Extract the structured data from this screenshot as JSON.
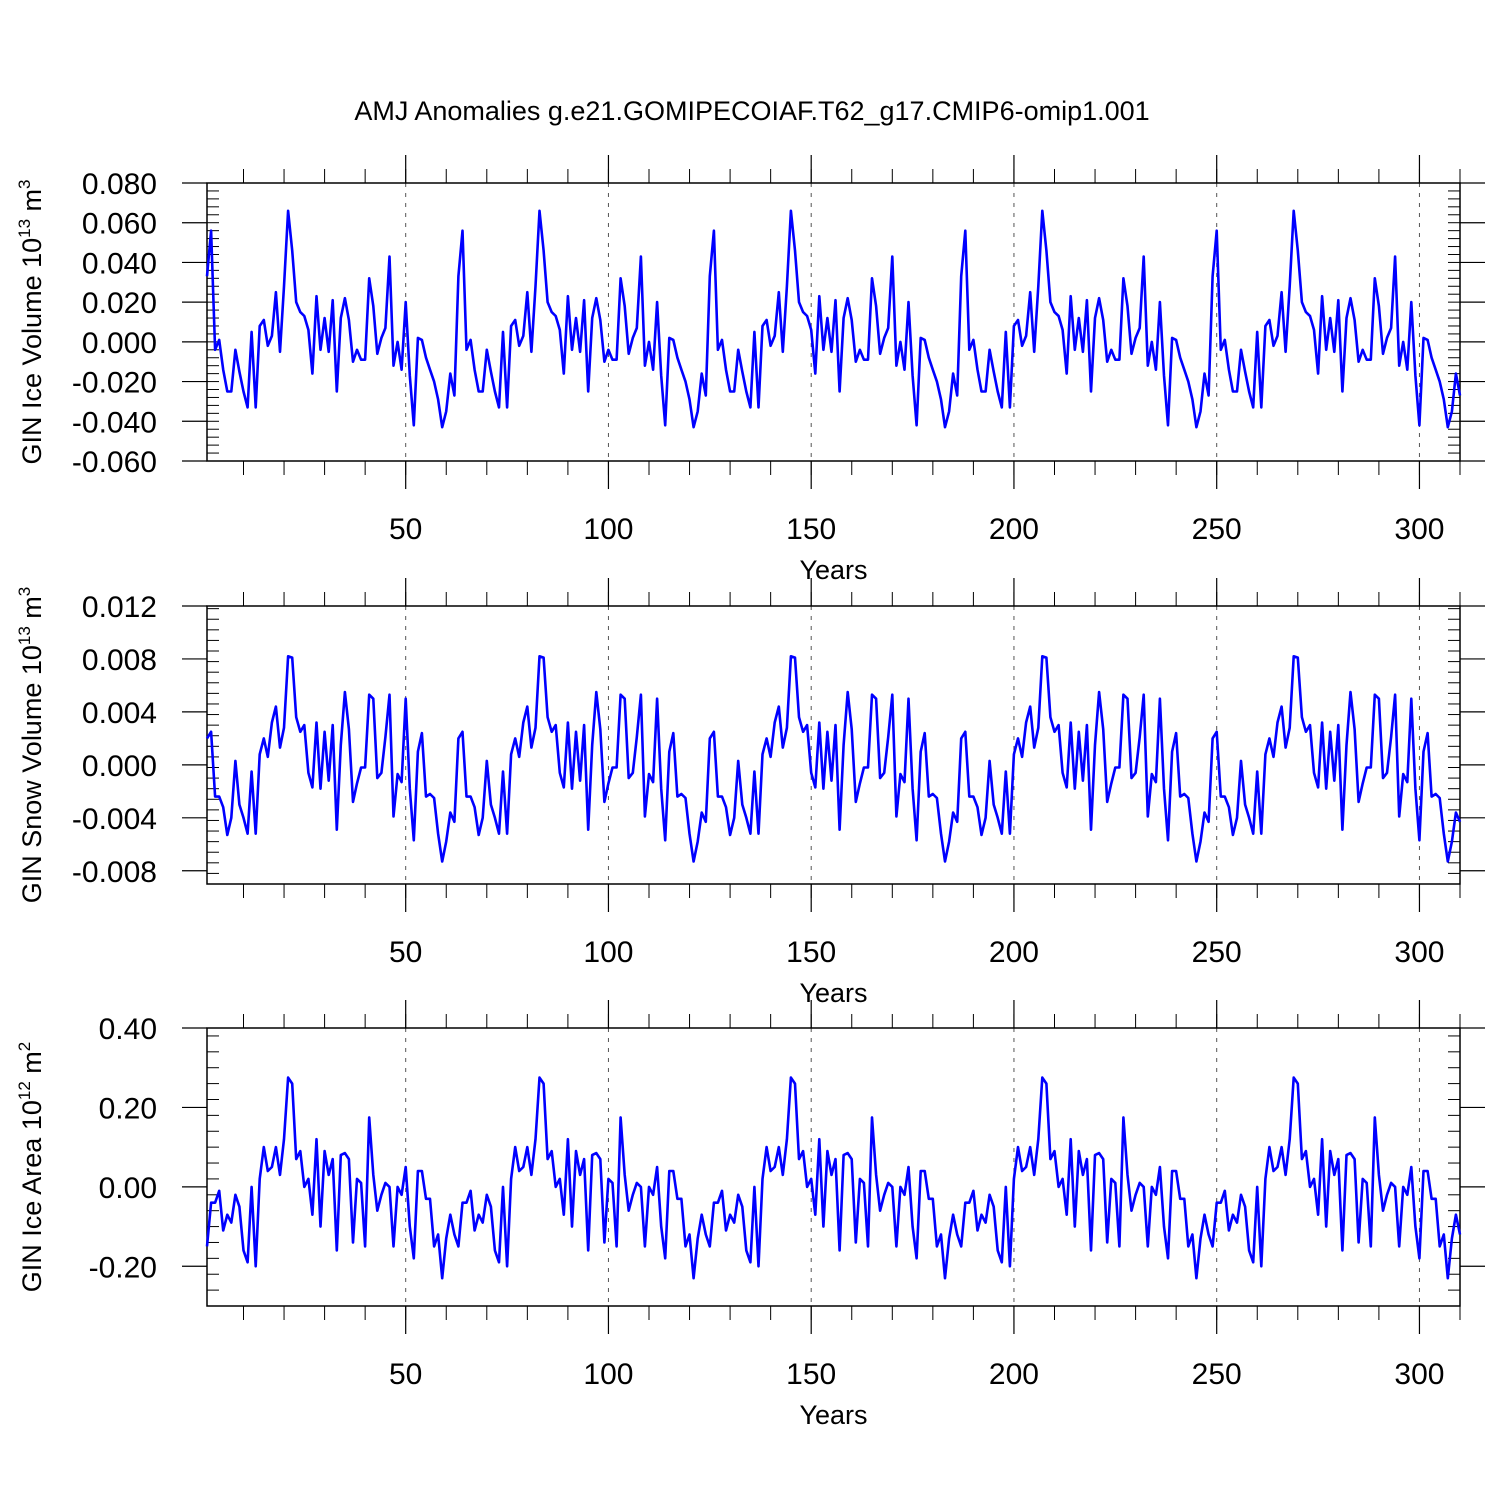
{
  "title": "AMJ Anomalies g.e21.GOMIPECOIAF.T62_g17.CMIP6-omip1.001",
  "colors": {
    "line": "#0000ff",
    "axis": "#000000",
    "grid": "#555555"
  },
  "chart_data": [
    {
      "type": "line",
      "name": "ice-volume",
      "ylabel": "GIN Ice Volume 10",
      "ylabel_sup": "13",
      "ylabel_unit": " m",
      "ylabel_unit_sup": "3",
      "xlabel": "Years",
      "xlim": [
        1,
        310
      ],
      "ylim": [
        -0.06,
        0.08
      ],
      "xticks": [
        50,
        100,
        150,
        200,
        250,
        300
      ],
      "xtick_labels": [
        "50",
        "100",
        "150",
        "200",
        "250",
        "300"
      ],
      "yticks": [
        -0.06,
        -0.04,
        -0.02,
        0.0,
        0.02,
        0.04,
        0.06,
        0.08
      ],
      "ytick_labels": [
        "-0.060",
        "-0.040",
        "-0.020",
        "0.000",
        "0.020",
        "0.040",
        "0.060",
        "0.080"
      ],
      "cycle_start": 1,
      "cycle_length": 62,
      "values": [
        0.033,
        0.056,
        -0.004,
        0.001,
        -0.014,
        -0.025,
        -0.025,
        -0.004,
        -0.015,
        -0.025,
        -0.033,
        0.005,
        -0.033,
        0.008,
        0.011,
        -0.002,
        0.003,
        0.025,
        -0.005,
        0.028,
        0.066,
        0.046,
        0.02,
        0.015,
        0.013,
        0.006,
        -0.016,
        0.023,
        -0.004,
        0.012,
        -0.005,
        0.021,
        -0.025,
        0.012,
        0.022,
        0.011,
        -0.01,
        -0.004,
        -0.009,
        -0.009,
        0.032,
        0.018,
        -0.006,
        0.002,
        0.007,
        0.043,
        -0.012,
        0.0,
        -0.014,
        0.02,
        -0.017,
        -0.042,
        0.002,
        0.001,
        -0.008,
        -0.014,
        -0.02,
        -0.029,
        -0.043,
        -0.035,
        -0.016,
        -0.027,
        -0.025
      ]
    },
    {
      "type": "line",
      "name": "snow-volume",
      "ylabel": "GIN Snow Volume 10",
      "ylabel_sup": "13",
      "ylabel_unit": " m",
      "ylabel_unit_sup": "3",
      "xlabel": "Years",
      "xlim": [
        1,
        310
      ],
      "ylim": [
        -0.009,
        0.012
      ],
      "xticks": [
        50,
        100,
        150,
        200,
        250,
        300
      ],
      "xtick_labels": [
        "50",
        "100",
        "150",
        "200",
        "250",
        "300"
      ],
      "yticks": [
        -0.008,
        -0.004,
        0.0,
        0.004,
        0.008,
        0.012
      ],
      "ytick_labels": [
        "-0.008",
        "-0.004",
        "0.000",
        "0.004",
        "0.008",
        "0.012"
      ],
      "cycle_start": 1,
      "cycle_length": 62,
      "values": [
        0.002,
        0.0025,
        -0.0024,
        -0.0024,
        -0.0032,
        -0.0053,
        -0.004,
        0.0003,
        -0.003,
        -0.004,
        -0.0052,
        -0.0005,
        -0.0052,
        0.0008,
        0.002,
        0.0006,
        0.0032,
        0.0044,
        0.0013,
        0.0028,
        0.0082,
        0.0081,
        0.0036,
        0.0025,
        0.003,
        -0.0006,
        -0.0017,
        0.0032,
        -0.0018,
        0.0025,
        -0.0012,
        0.003,
        -0.0049,
        0.0015,
        0.0055,
        0.0027,
        -0.0028,
        -0.0014,
        -0.0002,
        -0.0002,
        0.0053,
        0.005,
        -0.001,
        -0.0006,
        0.0021,
        0.0053,
        -0.0039,
        -0.0007,
        -0.0013,
        0.005,
        -0.0018,
        -0.0057,
        0.001,
        0.0024,
        -0.0024,
        -0.0022,
        -0.0025,
        -0.0052,
        -0.0073,
        -0.0058,
        -0.0036,
        -0.0043,
        -0.0042
      ]
    },
    {
      "type": "line",
      "name": "ice-area",
      "ylabel": "GIN Ice Area 10",
      "ylabel_sup": "12",
      "ylabel_unit": " m",
      "ylabel_unit_sup": "2",
      "xlabel": "Years",
      "xlim": [
        1,
        310
      ],
      "ylim": [
        -0.3,
        0.4
      ],
      "xticks": [
        50,
        100,
        150,
        200,
        250,
        300
      ],
      "xtick_labels": [
        "50",
        "100",
        "150",
        "200",
        "250",
        "300"
      ],
      "yticks": [
        -0.2,
        0.0,
        0.2,
        0.4
      ],
      "ytick_labels": [
        "-0.20",
        "0.00",
        "0.20",
        "0.40"
      ],
      "cycle_start": 1,
      "cycle_length": 62,
      "values": [
        -0.15,
        -0.04,
        -0.04,
        -0.01,
        -0.11,
        -0.07,
        -0.09,
        -0.02,
        -0.05,
        -0.16,
        -0.19,
        0.0,
        -0.2,
        0.02,
        0.1,
        0.04,
        0.05,
        0.1,
        0.03,
        0.12,
        0.275,
        0.26,
        0.07,
        0.09,
        0.0,
        0.02,
        -0.07,
        0.12,
        -0.1,
        0.09,
        0.03,
        0.07,
        -0.16,
        0.08,
        0.085,
        0.07,
        -0.14,
        0.02,
        0.01,
        -0.15,
        0.175,
        0.03,
        -0.06,
        -0.02,
        0.01,
        0.0,
        -0.15,
        0.0,
        -0.02,
        0.05,
        -0.1,
        -0.18,
        0.04,
        0.04,
        -0.03,
        -0.03,
        -0.15,
        -0.12,
        -0.23,
        -0.13,
        -0.07,
        -0.12,
        -0.12
      ]
    }
  ]
}
